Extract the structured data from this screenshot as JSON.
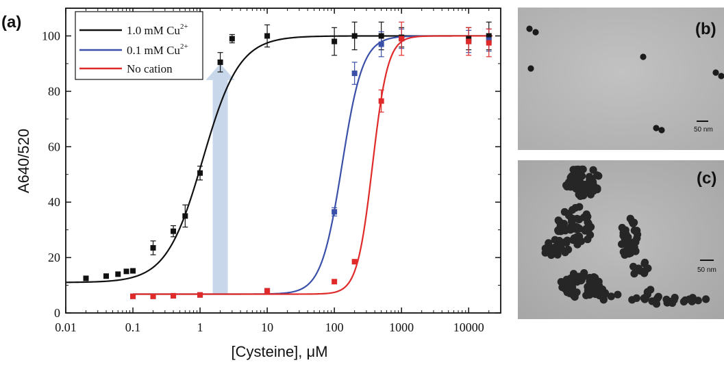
{
  "figure": {
    "panel_a": "(a)",
    "panel_b": "(b)",
    "panel_c": "(c)",
    "scale_bar_b": "50 nm",
    "scale_bar_c": "50 nm"
  },
  "chart_data": {
    "type": "scatter",
    "title": "",
    "xlabel": "[Cysteine], μM",
    "ylabel": "A640/520",
    "xscale": "log",
    "xlim": [
      0.01,
      30000
    ],
    "ylim": [
      0,
      110
    ],
    "x_ticks": [
      0.01,
      0.1,
      1,
      10,
      100,
      1000,
      10000
    ],
    "x_tick_labels": [
      "0.01",
      "0.1",
      "1",
      "10",
      "100",
      "1000",
      "10000"
    ],
    "y_ticks": [
      0,
      20,
      40,
      60,
      80,
      100
    ],
    "y_tick_labels": [
      "0",
      "20",
      "40",
      "60",
      "80",
      "100"
    ],
    "legend": {
      "position": "top-left"
    },
    "series": [
      {
        "name": "1.0 mM Cu",
        "name_sup": "2+",
        "color": "#111111",
        "marker": "square",
        "x": [
          0.02,
          0.04,
          0.06,
          0.08,
          0.1,
          0.2,
          0.4,
          0.6,
          1,
          2,
          3,
          10,
          100,
          200,
          500,
          1000,
          10000,
          20000
        ],
        "y": [
          12.5,
          13.3,
          14,
          15,
          15.2,
          23.5,
          29.5,
          35,
          50.5,
          90.5,
          99,
          100,
          98,
          100,
          100,
          99.5,
          99,
          100
        ],
        "error": [
          0,
          0,
          0,
          0,
          0,
          2.5,
          2,
          4,
          2.5,
          3.5,
          1.5,
          4,
          5,
          5,
          5,
          3.5,
          4,
          5
        ],
        "fit": {
          "bottom": 11,
          "top": 100,
          "ec50": 1.1,
          "hill": 1.6
        }
      },
      {
        "name": "0.1 mM Cu",
        "name_sup": "2+",
        "color": "#3a50a8",
        "marker": "square",
        "x": [
          0.1,
          0.2,
          0.4,
          1,
          10,
          100,
          200,
          500,
          1000,
          10000,
          20000
        ],
        "y": [
          6,
          6,
          6.2,
          6.5,
          8,
          36.5,
          86.5,
          97,
          99,
          98,
          98.5
        ],
        "error": [
          0,
          0,
          0,
          0,
          0,
          1.5,
          4,
          4.5,
          3.5,
          4,
          4
        ],
        "fit": {
          "bottom": 6.8,
          "top": 100,
          "ec50": 130,
          "hill": 2.8
        }
      },
      {
        "name": "No cation",
        "name_sup": "",
        "color": "#e02a2a",
        "marker": "square",
        "x": [
          0.1,
          0.2,
          0.4,
          1,
          10,
          100,
          200,
          500,
          1000,
          10000,
          20000
        ],
        "y": [
          6,
          6,
          6.2,
          6.5,
          8,
          11.3,
          18.5,
          76.5,
          99,
          98,
          97.5
        ],
        "error": [
          0,
          0,
          0,
          0,
          0,
          0,
          0,
          4,
          6,
          5,
          5
        ],
        "fit": {
          "bottom": 6.8,
          "top": 100,
          "ec50": 370,
          "hill": 3.8
        }
      }
    ],
    "annotation": {
      "type": "arrow",
      "color": "#c8d8ea",
      "x": 2,
      "y_from": 7,
      "y_to": 90
    }
  }
}
